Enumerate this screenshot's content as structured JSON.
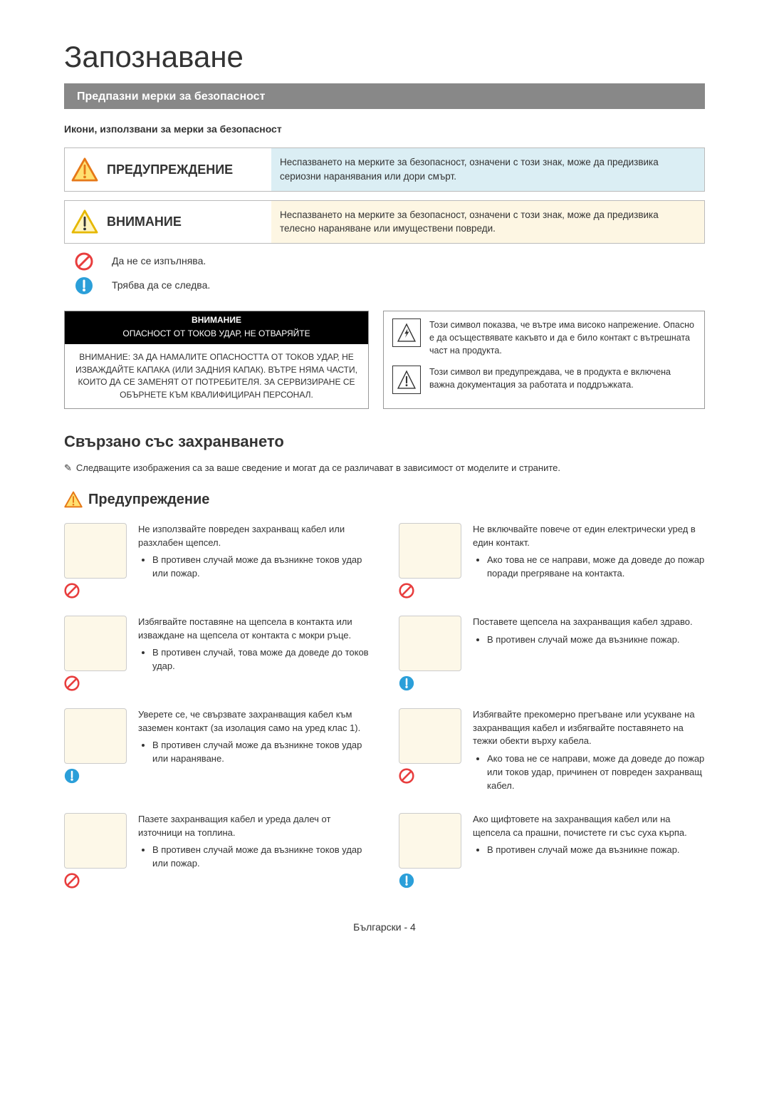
{
  "page_title": "Запознаване",
  "section_bar": "Предпазни мерки за безопасност",
  "icons_subtitle": "Икони, използвани за мерки за безопасност",
  "hazard_warning": {
    "label": "ПРЕДУПРЕЖДЕНИЕ",
    "desc": "Неспазването на мерките за безопасност, означени с този знак, може да предизвика сериозни наранявания или дори смърт.",
    "desc_bg": "#dbeef4",
    "icon_stroke": "#e67817",
    "icon_fill": "#ffe070"
  },
  "hazard_caution": {
    "label": "ВНИМАНИЕ",
    "desc": "Неспазването на мерките за безопасност, означени с този знак, може да предизвика телесно нараняване или имуществени повреди.",
    "desc_bg": "#fdf6e3",
    "icon_stroke": "#e6b800",
    "icon_fill": "#fff4c0"
  },
  "legend": {
    "prohibit": "Да не се изпълнява.",
    "follow": "Трябва да се следва."
  },
  "caution_box": {
    "top": "ВНИМАНИЕ",
    "sub": "ОПАСНОСТ ОТ ТОКОВ УДАР, НЕ ОТВАРЯЙТЕ",
    "body": "ВНИМАНИЕ: ЗА ДА НАМАЛИТЕ ОПАСНОСТТА ОТ ТОКОВ УДАР, НЕ ИЗВАЖДАЙТЕ КАПАКА (ИЛИ ЗАДНИЯ КАПАК). ВЪТРЕ НЯМА ЧАСТИ, КОИТО ДА СЕ ЗАМЕНЯТ ОТ ПОТРЕБИТЕЛЯ. ЗА СЕРВИЗИРАНЕ СЕ ОБЪРНЕТЕ КЪМ КВАЛИФИЦИРАН ПЕРСОНАЛ."
  },
  "symbol_hv": "Този символ показва, че вътре има високо напрежение. Опасно е да осъществявате какъвто и да е било контакт с вътрешната част на продукта.",
  "symbol_doc": "Този символ ви предупреждава, че в продукта е включена важна документация за работата и поддръжката.",
  "power_title": "Свързано със захранването",
  "power_note": "Следващите изображения са за ваше сведение и могат да се различават в зависимост от моделите и страните.",
  "warn_subtitle": "Предупреждение",
  "items": [
    {
      "lead": "Не използвайте повреден захранващ кабел или разхлабен щепсел.",
      "bullets": [
        "В противен случай може да възникне токов удар или пожар."
      ],
      "badge": "prohibit"
    },
    {
      "lead": "Не включвайте повече от един електрически уред в един контакт.",
      "bullets": [
        "Ако това не се направи, може да доведе до пожар поради прегряване на контакта."
      ],
      "badge": "prohibit"
    },
    {
      "lead": "Избягвайте поставяне на щепсела в контакта или изваждане на щепсела от контакта с мокри ръце.",
      "bullets": [
        "В противен случай, това може да доведе до токов удар."
      ],
      "badge": "prohibit"
    },
    {
      "lead": "Поставете щепсела на захранващия кабел здраво.",
      "bullets": [
        "В противен случай може да възникне пожар."
      ],
      "badge": "follow"
    },
    {
      "lead": "Уверете се, че свързвате захранващия кабел към заземен контакт (за изолация само на уред клас 1).",
      "bullets": [
        "В противен случай може да възникне токов удар или нараняване."
      ],
      "badge": "follow"
    },
    {
      "lead": "Избягвайте прекомерно прегъване или усукване на захранващия кабел и избягвайте поставянето на тежки обекти върху кабела.",
      "bullets": [
        "Ако това не се направи, може да доведе до пожар или токов удар, причинен от повреден захранващ кабел."
      ],
      "badge": "prohibit"
    },
    {
      "lead": "Пазете захранващия кабел и уреда далеч от източници на топлина.",
      "bullets": [
        "В противен случай може да възникне токов удар или пожар."
      ],
      "badge": "prohibit"
    },
    {
      "lead": "Ако щифтовете на захранващия кабел или на щепсела са прашни, почистете ги със суха кърпа.",
      "bullets": [
        "В противен случай може да възникне пожар."
      ],
      "badge": "follow"
    }
  ],
  "footer": "Български - 4",
  "colors": {
    "prohibit": "#e83e3e",
    "follow": "#2b9fd9",
    "warn_orange": "#e67817",
    "warn_yellow": "#ffd040",
    "img_bg": "#fdf8e8"
  }
}
